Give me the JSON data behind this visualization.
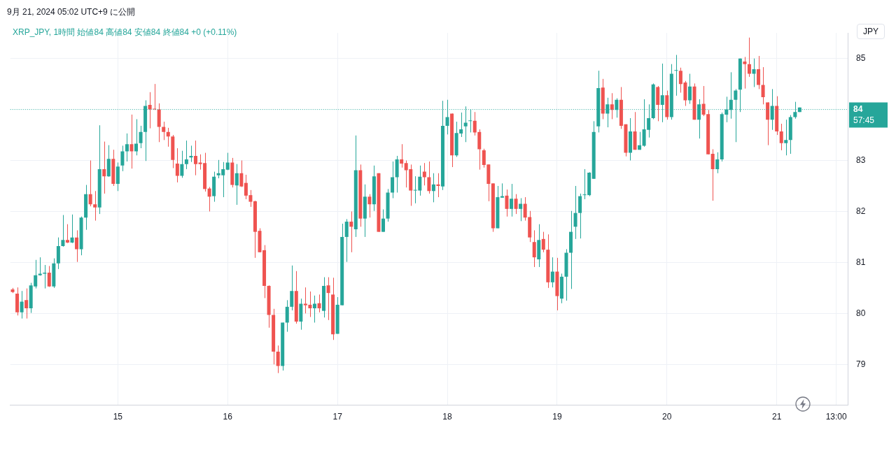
{
  "chart_data": {
    "type": "candlestick",
    "title": "9月 21, 2024 05:02 UTC+9 に公開",
    "subtitle": "XRP_JPY, 1時間 始値84 高値84 安値84 終値84 +0 (+0.11%)",
    "ylabel": "JPY",
    "categories": [
      null,
      null,
      null,
      null,
      null,
      null,
      null,
      null,
      null,
      null,
      null,
      null,
      null,
      null,
      null,
      null,
      null,
      null,
      null,
      null,
      null,
      null,
      null,
      "15",
      null,
      null,
      null,
      null,
      null,
      null,
      null,
      null,
      null,
      null,
      null,
      null,
      null,
      null,
      null,
      null,
      null,
      null,
      null,
      null,
      null,
      null,
      null,
      "16",
      null,
      null,
      null,
      null,
      null,
      null,
      null,
      null,
      null,
      null,
      null,
      null,
      null,
      null,
      null,
      null,
      null,
      null,
      null,
      null,
      null,
      null,
      null,
      "17",
      null,
      null,
      null,
      null,
      null,
      null,
      null,
      null,
      null,
      null,
      null,
      null,
      null,
      null,
      null,
      null,
      null,
      null,
      null,
      null,
      null,
      null,
      null,
      "18",
      null,
      null,
      null,
      null,
      null,
      null,
      null,
      null,
      null,
      null,
      null,
      null,
      null,
      null,
      null,
      null,
      null,
      null,
      null,
      null,
      null,
      null,
      null,
      "19",
      null,
      null,
      null,
      null,
      null,
      null,
      null,
      null,
      null,
      null,
      null,
      null,
      null,
      null,
      null,
      null,
      null,
      null,
      null,
      null,
      null,
      null,
      null,
      "20",
      null,
      null,
      null,
      null,
      null,
      null,
      null,
      null,
      null,
      null,
      null,
      null,
      null,
      null,
      null,
      null,
      null,
      null,
      null,
      null,
      null,
      null,
      null,
      "21",
      null,
      null,
      null,
      null,
      null,
      null,
      null,
      null,
      null,
      null,
      null,
      null,
      "13:00",
      null,
      null
    ],
    "ohlc": [
      [
        80.47,
        80.5,
        80.4,
        80.42
      ],
      [
        80.39,
        80.51,
        79.96,
        80.02
      ],
      [
        80.02,
        80.44,
        79.9,
        80.23
      ],
      [
        80.26,
        80.49,
        79.9,
        80.1
      ],
      [
        80.1,
        80.6,
        80.01,
        80.55
      ],
      [
        80.53,
        81.05,
        80.49,
        80.75
      ],
      [
        80.75,
        81.1,
        80.74,
        80.78
      ],
      [
        80.78,
        80.95,
        80.49,
        80.8
      ],
      [
        80.8,
        80.93,
        80.52,
        80.53
      ],
      [
        80.53,
        81.08,
        80.5,
        80.98
      ],
      [
        80.98,
        81.49,
        80.87,
        81.32
      ],
      [
        81.32,
        81.93,
        81.31,
        81.44
      ],
      [
        81.44,
        81.75,
        81.38,
        81.39
      ],
      [
        81.39,
        81.94,
        81.38,
        81.49
      ],
      [
        81.49,
        81.63,
        81.01,
        81.26
      ],
      [
        81.26,
        81.9,
        81.14,
        81.88
      ],
      [
        81.88,
        82.52,
        81.64,
        82.34
      ],
      [
        82.34,
        83.0,
        82.1,
        82.14
      ],
      [
        82.14,
        82.4,
        81.82,
        82.08
      ],
      [
        82.08,
        83.69,
        81.95,
        82.83
      ],
      [
        82.83,
        83.37,
        82.35,
        82.69
      ],
      [
        82.69,
        83.3,
        82.68,
        83.03
      ],
      [
        83.03,
        83.21,
        82.5,
        82.54
      ],
      [
        82.54,
        82.96,
        82.4,
        82.88
      ],
      [
        82.9,
        83.29,
        82.79,
        83.18
      ],
      [
        83.18,
        83.53,
        82.98,
        83.32
      ],
      [
        83.32,
        83.9,
        82.84,
        83.18
      ],
      [
        83.18,
        83.81,
        83.1,
        83.33
      ],
      [
        83.34,
        83.68,
        83.24,
        83.56
      ],
      [
        83.56,
        84.18,
        82.99,
        84.07
      ],
      [
        84.09,
        84.34,
        83.63,
        84.0
      ],
      [
        84.01,
        84.5,
        83.99,
        84.0
      ],
      [
        84.0,
        84.12,
        83.36,
        83.66
      ],
      [
        83.66,
        83.76,
        83.4,
        83.56
      ],
      [
        83.56,
        83.64,
        83.27,
        83.47
      ],
      [
        83.47,
        83.5,
        82.85,
        83.01
      ],
      [
        82.94,
        83.24,
        82.57,
        82.7
      ],
      [
        82.7,
        83.19,
        82.66,
        82.93
      ],
      [
        82.93,
        83.39,
        82.83,
        83.02
      ],
      [
        83.06,
        83.29,
        82.97,
        83.09
      ],
      [
        83.09,
        83.39,
        82.71,
        82.93
      ],
      [
        82.96,
        83.12,
        82.82,
        82.93
      ],
      [
        82.95,
        83.15,
        82.39,
        82.44
      ],
      [
        82.45,
        82.48,
        82.0,
        82.29
      ],
      [
        82.3,
        82.78,
        82.19,
        82.68
      ],
      [
        82.71,
        83.01,
        82.65,
        82.75
      ],
      [
        82.71,
        82.97,
        82.28,
        82.83
      ],
      [
        82.82,
        83.15,
        82.81,
        82.96
      ],
      [
        82.96,
        83.05,
        82.47,
        82.52
      ],
      [
        82.51,
        82.93,
        82.13,
        82.75
      ],
      [
        82.75,
        83.0,
        82.48,
        82.49
      ],
      [
        82.56,
        82.72,
        82.24,
        82.31
      ],
      [
        82.32,
        82.42,
        82.09,
        82.19
      ],
      [
        82.2,
        82.21,
        81.09,
        81.6
      ],
      [
        81.62,
        81.67,
        81.2,
        81.2
      ],
      [
        81.24,
        81.34,
        80.3,
        80.54
      ],
      [
        80.54,
        80.55,
        79.72,
        79.97
      ],
      [
        79.97,
        80.09,
        79.0,
        79.25
      ],
      [
        79.25,
        79.37,
        78.83,
        78.97
      ],
      [
        78.97,
        79.82,
        78.88,
        79.82
      ],
      [
        79.82,
        80.26,
        79.64,
        80.13
      ],
      [
        80.13,
        80.94,
        80.06,
        80.44
      ],
      [
        80.44,
        80.83,
        79.8,
        79.84
      ],
      [
        79.84,
        80.29,
        79.68,
        80.19
      ],
      [
        80.19,
        80.51,
        80.0,
        80.16
      ],
      [
        80.17,
        80.43,
        79.93,
        80.1
      ],
      [
        80.1,
        80.35,
        79.82,
        80.19
      ],
      [
        80.2,
        80.37,
        80.02,
        80.1
      ],
      [
        80.05,
        80.71,
        79.92,
        80.54
      ],
      [
        80.55,
        80.71,
        79.87,
        80.4
      ],
      [
        80.37,
        80.7,
        79.48,
        79.59
      ],
      [
        79.6,
        80.32,
        79.6,
        80.17
      ],
      [
        80.16,
        81.76,
        80.16,
        81.5
      ],
      [
        81.5,
        81.85,
        81.01,
        81.8
      ],
      [
        81.8,
        82.0,
        81.2,
        81.7
      ],
      [
        81.65,
        83.49,
        81.5,
        82.81
      ],
      [
        82.81,
        82.92,
        81.7,
        81.86
      ],
      [
        81.86,
        82.53,
        81.5,
        82.29
      ],
      [
        82.29,
        82.34,
        81.88,
        82.14
      ],
      [
        82.14,
        82.9,
        82.01,
        82.69
      ],
      [
        82.75,
        82.75,
        81.6,
        81.6
      ],
      [
        81.6,
        82.04,
        81.6,
        81.86
      ],
      [
        81.86,
        82.44,
        81.8,
        82.37
      ],
      [
        82.37,
        82.98,
        82.26,
        82.67
      ],
      [
        82.67,
        83.09,
        82.37,
        83.02
      ],
      [
        83.02,
        83.32,
        82.86,
        82.94
      ],
      [
        82.95,
        83.0,
        82.47,
        82.81
      ],
      [
        82.83,
        82.92,
        82.11,
        82.41
      ],
      [
        82.41,
        82.69,
        82.16,
        82.42
      ],
      [
        82.41,
        82.9,
        82.31,
        82.68
      ],
      [
        82.78,
        82.95,
        82.51,
        82.67
      ],
      [
        82.67,
        82.98,
        82.35,
        82.4
      ],
      [
        82.4,
        82.75,
        82.18,
        82.53
      ],
      [
        82.53,
        82.75,
        82.28,
        82.5
      ],
      [
        82.49,
        84.17,
        82.42,
        83.68
      ],
      [
        83.68,
        84.19,
        83.51,
        83.85
      ],
      [
        83.92,
        83.92,
        82.87,
        83.1
      ],
      [
        83.1,
        83.76,
        83.07,
        83.54
      ],
      [
        83.53,
        83.94,
        83.46,
        83.61
      ],
      [
        83.67,
        84.06,
        83.36,
        83.74
      ],
      [
        83.77,
        84.0,
        83.55,
        83.78
      ],
      [
        83.78,
        83.95,
        83.49,
        83.55
      ],
      [
        83.56,
        83.61,
        82.82,
        83.22
      ],
      [
        83.2,
        83.23,
        82.86,
        82.91
      ],
      [
        82.92,
        82.92,
        82.2,
        82.54
      ],
      [
        82.55,
        82.55,
        81.6,
        81.67
      ],
      [
        81.67,
        82.5,
        81.67,
        82.28
      ],
      [
        82.27,
        82.55,
        82.27,
        82.3
      ],
      [
        82.31,
        82.43,
        81.9,
        82.05
      ],
      [
        82.05,
        82.54,
        81.9,
        82.25
      ],
      [
        82.25,
        82.34,
        81.95,
        82.05
      ],
      [
        82.05,
        82.26,
        81.81,
        82.15
      ],
      [
        82.15,
        82.28,
        81.82,
        81.88
      ],
      [
        81.89,
        82.01,
        81.4,
        81.49
      ],
      [
        81.4,
        81.63,
        80.91,
        81.1
      ],
      [
        81.06,
        81.75,
        80.91,
        81.44
      ],
      [
        81.46,
        81.6,
        81.2,
        81.25
      ],
      [
        81.25,
        81.55,
        80.5,
        80.61
      ],
      [
        80.61,
        81.1,
        80.51,
        80.82
      ],
      [
        80.82,
        81.09,
        80.06,
        80.34
      ],
      [
        80.29,
        80.78,
        80.2,
        80.72
      ],
      [
        80.72,
        81.26,
        80.25,
        81.19
      ],
      [
        81.19,
        82.01,
        80.48,
        81.6
      ],
      [
        81.7,
        82.5,
        81.46,
        81.97
      ],
      [
        81.97,
        82.35,
        81.47,
        82.3
      ],
      [
        82.32,
        82.83,
        82.24,
        82.33
      ],
      [
        82.32,
        82.77,
        82.3,
        82.76
      ],
      [
        82.64,
        83.77,
        82.64,
        83.56
      ],
      [
        83.67,
        84.76,
        83.55,
        84.42
      ],
      [
        84.43,
        84.6,
        83.81,
        83.92
      ],
      [
        83.92,
        84.23,
        83.65,
        84.1
      ],
      [
        84.1,
        84.32,
        83.81,
        83.99
      ],
      [
        83.99,
        84.22,
        83.84,
        84.19
      ],
      [
        84.19,
        84.44,
        83.62,
        83.68
      ],
      [
        83.71,
        83.71,
        83.08,
        83.15
      ],
      [
        83.15,
        83.83,
        83.0,
        83.57
      ],
      [
        83.57,
        83.95,
        83.21,
        83.21
      ],
      [
        83.21,
        83.56,
        83.21,
        83.3
      ],
      [
        83.29,
        84.2,
        83.27,
        83.61
      ],
      [
        83.6,
        84.1,
        83.45,
        83.83
      ],
      [
        83.83,
        84.51,
        83.81,
        84.49
      ],
      [
        84.44,
        84.46,
        83.77,
        84.09
      ],
      [
        84.09,
        84.9,
        83.75,
        84.28
      ],
      [
        84.28,
        84.37,
        83.8,
        83.85
      ],
      [
        83.85,
        84.89,
        83.8,
        84.7
      ],
      [
        84.76,
        85.07,
        84.27,
        84.77
      ],
      [
        84.76,
        84.82,
        84.33,
        84.5
      ],
      [
        84.53,
        84.56,
        84.07,
        84.18
      ],
      [
        84.18,
        84.7,
        84.11,
        84.45
      ],
      [
        84.45,
        84.51,
        83.8,
        83.8
      ],
      [
        83.8,
        84.2,
        83.43,
        84.1
      ],
      [
        84.11,
        84.46,
        83.87,
        83.9
      ],
      [
        83.91,
        83.99,
        83.12,
        83.12
      ],
      [
        83.13,
        83.22,
        82.21,
        82.83
      ],
      [
        82.83,
        83.16,
        82.75,
        83.02
      ],
      [
        83.02,
        83.94,
        82.98,
        83.91
      ],
      [
        83.9,
        84.25,
        83.75,
        84.0
      ],
      [
        83.99,
        84.73,
        83.82,
        84.19
      ],
      [
        84.19,
        84.4,
        83.36,
        84.37
      ],
      [
        84.39,
        85.0,
        83.95,
        85.0
      ],
      [
        84.94,
        85.03,
        84.41,
        84.89
      ],
      [
        84.89,
        85.41,
        84.64,
        84.7
      ],
      [
        84.7,
        85.0,
        84.44,
        84.79
      ],
      [
        84.79,
        85.05,
        84.4,
        84.48
      ],
      [
        84.48,
        84.83,
        84.1,
        84.24
      ],
      [
        84.14,
        84.14,
        83.3,
        83.8
      ],
      [
        83.8,
        84.4,
        83.6,
        84.07
      ],
      [
        84.07,
        84.26,
        83.5,
        83.57
      ],
      [
        83.57,
        83.72,
        83.2,
        83.34
      ],
      [
        83.34,
        83.8,
        83.1,
        83.4
      ],
      [
        83.4,
        83.89,
        83.13,
        83.85
      ],
      [
        83.85,
        84.15,
        83.82,
        83.95
      ],
      [
        83.95,
        84.04,
        83.95,
        84.04
      ],
      null,
      null,
      null,
      null,
      null,
      null,
      null,
      null,
      null,
      null
    ],
    "colors": [
      "#ef5350",
      "#ef5350",
      "#26a69a",
      "#ef5350",
      "#26a69a",
      "#26a69a",
      "#26a69a",
      "#26a69a",
      "#ef5350",
      "#26a69a",
      "#26a69a",
      "#26a69a",
      "#ef5350",
      "#26a69a",
      "#ef5350",
      "#26a69a",
      "#26a69a",
      "#ef5350",
      "#ef5350",
      "#26a69a",
      "#ef5350",
      "#26a69a",
      "#ef5350",
      "#26a69a",
      "#26a69a",
      "#26a69a",
      "#ef5350",
      "#26a69a",
      "#26a69a",
      "#26a69a",
      "#ef5350",
      "#ef5350",
      "#ef5350",
      "#ef5350",
      "#ef5350",
      "#ef5350",
      "#ef5350",
      "#26a69a",
      "#26a69a",
      "#26a69a",
      "#ef5350",
      "#ef5350",
      "#ef5350",
      "#ef5350",
      "#26a69a",
      "#26a69a",
      "#26a69a",
      "#26a69a",
      "#ef5350",
      "#26a69a",
      "#ef5350",
      "#ef5350",
      "#ef5350",
      "#ef5350",
      "#ef5350",
      "#ef5350",
      "#ef5350",
      "#ef5350",
      "#ef5350",
      "#26a69a",
      "#26a69a",
      "#26a69a",
      "#ef5350",
      "#26a69a",
      "#ef5350",
      "#ef5350",
      "#26a69a",
      "#ef5350",
      "#26a69a",
      "#ef5350",
      "#ef5350",
      "#26a69a",
      "#26a69a",
      "#26a69a",
      "#ef5350",
      "#26a69a",
      "#ef5350",
      "#26a69a",
      "#ef5350",
      "#26a69a",
      "#ef5350",
      "#26a69a",
      "#26a69a",
      "#26a69a",
      "#26a69a",
      "#ef5350",
      "#ef5350",
      "#ef5350",
      "#26a69a",
      "#26a69a",
      "#ef5350",
      "#ef5350",
      "#26a69a",
      "#ef5350",
      "#26a69a",
      "#26a69a",
      "#ef5350",
      "#26a69a",
      "#26a69a",
      "#26a69a",
      "#26a69a",
      "#ef5350",
      "#ef5350",
      "#ef5350",
      "#ef5350",
      "#ef5350",
      "#26a69a",
      "#26a69a",
      "#ef5350",
      "#26a69a",
      "#ef5350",
      "#26a69a",
      "#ef5350",
      "#ef5350",
      "#ef5350",
      "#26a69a",
      "#ef5350",
      "#ef5350",
      "#26a69a",
      "#ef5350",
      "#26a69a",
      "#26a69a",
      "#26a69a",
      "#26a69a",
      "#26a69a",
      "#26a69a",
      "#26a69a",
      "#26a69a",
      "#26a69a",
      "#ef5350",
      "#26a69a",
      "#ef5350",
      "#26a69a",
      "#ef5350",
      "#ef5350",
      "#26a69a",
      "#ef5350",
      "#26a69a",
      "#26a69a",
      "#26a69a",
      "#26a69a",
      "#ef5350",
      "#26a69a",
      "#ef5350",
      "#26a69a",
      "#26a69a",
      "#ef5350",
      "#ef5350",
      "#26a69a",
      "#ef5350",
      "#26a69a",
      "#ef5350",
      "#ef5350",
      "#ef5350",
      "#26a69a",
      "#26a69a",
      "#26a69a",
      "#26a69a",
      "#26a69a",
      "#26a69a",
      "#ef5350",
      "#ef5350",
      "#26a69a",
      "#ef5350",
      "#ef5350",
      "#ef5350",
      "#26a69a",
      "#ef5350",
      "#ef5350",
      "#26a69a",
      "#26a69a",
      "#26a69a",
      "#26a69a",
      null,
      null,
      null,
      null,
      null,
      null,
      null,
      null,
      null,
      null
    ],
    "ylim": [
      78.2,
      85.5
    ],
    "yticks": [
      79,
      80,
      81,
      82,
      83,
      85
    ],
    "grid": true,
    "ref_lines": [
      {
        "axis": "y",
        "value": 84,
        "label": "84",
        "color": "#26a69a",
        "line_style": "dotted"
      }
    ],
    "annotations": [
      "57:45"
    ]
  }
}
